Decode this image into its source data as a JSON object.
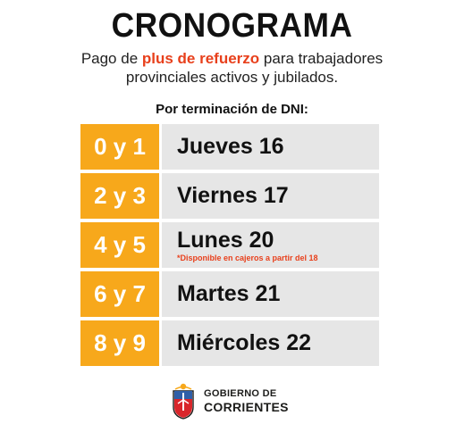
{
  "title": "CRONOGRAMA",
  "subtitle": {
    "before": "Pago de ",
    "highlight": "plus de refuerzo",
    "after": " para trabajadores",
    "line2": "provinciales activos y jubilados."
  },
  "dni_label": "Por terminación de DNI:",
  "schedule": [
    {
      "digits": "0 y 1",
      "day": "Jueves 16",
      "note": ""
    },
    {
      "digits": "2 y 3",
      "day": "Viernes 17",
      "note": ""
    },
    {
      "digits": "4 y 5",
      "day": "Lunes 20",
      "note": "*Disponible en cajeros a partir del 18"
    },
    {
      "digits": "6 y 7",
      "day": "Martes 21",
      "note": ""
    },
    {
      "digits": "8 y 9",
      "day": "Miércoles 22",
      "note": ""
    }
  ],
  "footer": {
    "line1": "GOBIERNO DE",
    "line2": "CORRIENTES",
    "logo_icon": "provincial-coat-of-arms-icon"
  },
  "colors": {
    "accent_orange": "#f7a81b",
    "highlight_red": "#e8401c",
    "row_gray": "#e6e6e6",
    "text_dark": "#111111"
  }
}
